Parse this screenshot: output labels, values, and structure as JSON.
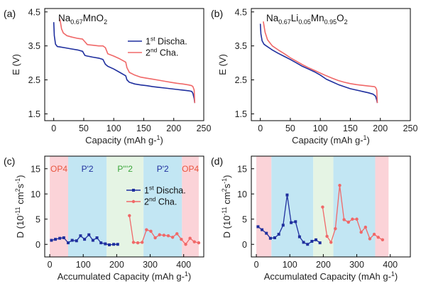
{
  "colors": {
    "discharge": "#1f2f9e",
    "charge": "#f06868",
    "op4": "#fbd3d8",
    "p2": "#c2e6f3",
    "p3": "#e5f4e4",
    "op4_text": "#e8553f",
    "p2_text": "#1f2f9e",
    "p3_text": "#3aa63a"
  },
  "chart_data": [
    {
      "id": "a",
      "type": "line",
      "panel_label": "(a)",
      "formula": {
        "base": "Na",
        "sub1": "0.67",
        "mid": "MnO",
        "sub2": "2",
        "extra": ""
      },
      "xlabel": "Capacity (mAh g⁻¹)",
      "ylabel": "E (V)",
      "xlim": [
        -15,
        250
      ],
      "ylim": [
        1.3,
        4.6
      ],
      "xticks": [
        0,
        50,
        100,
        150,
        200,
        250
      ],
      "yticks": [
        1.5,
        2.5,
        3.5,
        4.5
      ],
      "ytick_labels": [
        "1.5",
        "2.5",
        "3.5",
        "4.5"
      ],
      "legend": {
        "position": "top-right",
        "entries": [
          {
            "key": "discharge",
            "base": "1",
            "sup": "st",
            "rest": " Discha."
          },
          {
            "key": "charge",
            "base": "2",
            "sup": "nd",
            "rest": " Cha."
          }
        ]
      },
      "series": [
        {
          "key": "discharge",
          "marker": "line",
          "x": [
            0,
            1,
            3,
            6,
            10,
            20,
            30,
            40,
            48,
            52,
            56,
            65,
            75,
            82,
            86,
            90,
            100,
            110,
            120,
            122,
            126,
            135,
            145,
            155,
            165,
            175,
            185,
            195,
            205,
            215,
            225,
            230,
            232,
            234,
            235
          ],
          "y": [
            4.2,
            3.8,
            3.55,
            3.48,
            3.47,
            3.44,
            3.41,
            3.38,
            3.34,
            3.22,
            3.2,
            3.17,
            3.14,
            3.1,
            2.96,
            2.9,
            2.82,
            2.72,
            2.62,
            2.5,
            2.43,
            2.38,
            2.35,
            2.33,
            2.3,
            2.28,
            2.26,
            2.24,
            2.22,
            2.2,
            2.18,
            2.16,
            2.1,
            1.95,
            1.82
          ]
        },
        {
          "key": "charge",
          "marker": "line",
          "x": [
            235,
            234,
            232,
            230,
            225,
            215,
            205,
            195,
            185,
            175,
            165,
            155,
            145,
            135,
            126,
            122,
            120,
            110,
            100,
            90,
            86,
            82,
            75,
            65,
            56,
            52,
            48,
            40,
            30,
            22,
            16,
            13,
            11,
            10
          ],
          "y": [
            1.82,
            2.2,
            2.3,
            2.33,
            2.35,
            2.38,
            2.4,
            2.43,
            2.46,
            2.49,
            2.52,
            2.55,
            2.58,
            2.64,
            2.72,
            2.86,
            3.02,
            3.12,
            3.2,
            3.27,
            3.45,
            3.5,
            3.5,
            3.52,
            3.54,
            3.62,
            3.7,
            3.72,
            3.76,
            3.8,
            3.88,
            4.0,
            4.22,
            4.3
          ]
        }
      ]
    },
    {
      "id": "b",
      "type": "line",
      "panel_label": "(b)",
      "formula": {
        "base": "Na",
        "sub1": "0.67",
        "mid": "Li",
        "sub2": "0.05",
        "extra": "Mn",
        "sub3": "0.95",
        "tail": "O",
        "sub4": "2"
      },
      "xlabel": "Capacity (mAh g⁻¹)",
      "ylabel": "E (V)",
      "xlim": [
        -15,
        250
      ],
      "ylim": [
        1.3,
        4.6
      ],
      "xticks": [
        0,
        50,
        100,
        150,
        200,
        250
      ],
      "yticks": [
        1.5,
        2.5,
        3.5,
        4.5
      ],
      "ytick_labels": [
        "1.5",
        "2.5",
        "3.5",
        "4.5"
      ],
      "series": [
        {
          "key": "discharge",
          "marker": "line",
          "x": [
            0,
            1,
            3,
            6,
            10,
            20,
            30,
            40,
            50,
            60,
            70,
            80,
            90,
            100,
            110,
            120,
            130,
            140,
            150,
            160,
            170,
            180,
            188,
            192,
            194,
            195
          ],
          "y": [
            4.15,
            3.85,
            3.65,
            3.55,
            3.5,
            3.38,
            3.28,
            3.19,
            3.1,
            3.0,
            2.9,
            2.82,
            2.74,
            2.64,
            2.52,
            2.44,
            2.36,
            2.3,
            2.24,
            2.2,
            2.16,
            2.12,
            2.08,
            2.02,
            1.9,
            1.82
          ]
        },
        {
          "key": "charge",
          "marker": "line",
          "x": [
            195,
            194,
            192,
            190,
            180,
            170,
            160,
            150,
            140,
            130,
            120,
            110,
            100,
            90,
            80,
            70,
            60,
            50,
            40,
            30,
            20,
            12,
            8,
            6,
            5
          ],
          "y": [
            1.82,
            2.2,
            2.28,
            2.3,
            2.32,
            2.34,
            2.36,
            2.39,
            2.43,
            2.48,
            2.55,
            2.62,
            2.7,
            2.78,
            2.86,
            2.95,
            3.05,
            3.15,
            3.27,
            3.38,
            3.5,
            3.68,
            3.9,
            4.1,
            4.22
          ]
        }
      ]
    },
    {
      "id": "c",
      "type": "line",
      "panel_label": "(c)",
      "xlabel": "Accumulated Capacity (mAh g⁻¹)",
      "ylabel": "D (10⁻¹¹ cm²s⁻¹)",
      "xlim": [
        -15,
        460
      ],
      "ylim": [
        -2.5,
        17.5
      ],
      "xticks": [
        0,
        100,
        200,
        300,
        400
      ],
      "yticks": [
        0,
        5,
        10,
        15
      ],
      "ytick_labels": [
        "0",
        "5",
        "10",
        "15"
      ],
      "regions": [
        {
          "x0": 0,
          "x1": 55,
          "phase": "op4",
          "label": "OP4"
        },
        {
          "x0": 55,
          "x1": 170,
          "phase": "p2",
          "label": "P'2"
        },
        {
          "x0": 170,
          "x1": 280,
          "phase": "p3",
          "label": "P'''2"
        },
        {
          "x0": 280,
          "x1": 395,
          "phase": "p2",
          "label": "P'2"
        },
        {
          "x0": 395,
          "x1": 445,
          "phase": "op4",
          "label": "OP4"
        }
      ],
      "legend": {
        "position": "top-right",
        "entries": [
          {
            "key": "discharge",
            "base": "1",
            "sup": "st",
            "rest": " Discha."
          },
          {
            "key": "charge",
            "base": "2",
            "sup": "nd",
            "rest": " Cha."
          }
        ]
      },
      "series": [
        {
          "key": "discharge",
          "marker": "square",
          "x": [
            5,
            17,
            30,
            42,
            55,
            67,
            80,
            92,
            104,
            117,
            129,
            141,
            153,
            166,
            178,
            191,
            203
          ],
          "y": [
            0.8,
            1.0,
            1.2,
            1.3,
            0.3,
            0.8,
            0.7,
            1.7,
            1.0,
            1.9,
            0.8,
            1.3,
            0.3,
            0.1,
            -0.1,
            0.0,
            0.0
          ]
        },
        {
          "key": "charge",
          "marker": "circle",
          "x": [
            238,
            250,
            263,
            276,
            289,
            302,
            315,
            328,
            341,
            354,
            367,
            380,
            393,
            406,
            419,
            432,
            445
          ],
          "y": [
            5.7,
            0.4,
            0.3,
            0.4,
            2.9,
            2.6,
            1.3,
            1.9,
            1.8,
            1.7,
            1.4,
            2.1,
            1.0,
            0.0,
            1.2,
            0.5,
            0.3
          ]
        }
      ]
    },
    {
      "id": "d",
      "type": "line",
      "panel_label": "(d)",
      "xlabel": "Accumulated Capacity (mAh g⁻¹)",
      "ylabel": "D (10⁻¹¹ cm²s⁻¹)",
      "xlim": [
        -15,
        460
      ],
      "ylim": [
        -2.5,
        17.5
      ],
      "xticks": [
        0,
        100,
        200,
        300,
        400
      ],
      "yticks": [
        0,
        5,
        10,
        15
      ],
      "ytick_labels": [
        "0",
        "5",
        "10",
        "15"
      ],
      "regions": [
        {
          "x0": 0,
          "x1": 45,
          "phase": "op4",
          "label": ""
        },
        {
          "x0": 45,
          "x1": 170,
          "phase": "p2",
          "label": ""
        },
        {
          "x0": 170,
          "x1": 230,
          "phase": "p3",
          "label": ""
        },
        {
          "x0": 230,
          "x1": 355,
          "phase": "p2",
          "label": ""
        },
        {
          "x0": 355,
          "x1": 395,
          "phase": "op4",
          "label": ""
        }
      ],
      "series": [
        {
          "key": "discharge",
          "marker": "square",
          "x": [
            5,
            17,
            30,
            42,
            55,
            67,
            80,
            92,
            104,
            117,
            129,
            141,
            153,
            166,
            178,
            190
          ],
          "y": [
            3.5,
            2.9,
            2.2,
            1.2,
            1.3,
            2.0,
            3.8,
            9.8,
            4.3,
            4.5,
            1.5,
            0.4,
            0.0,
            0.6,
            0.9,
            0.3
          ]
        },
        {
          "key": "charge",
          "marker": "circle",
          "x": [
            198,
            211,
            223,
            236,
            249,
            262,
            275,
            287,
            300,
            313,
            326,
            339,
            352,
            364,
            377
          ],
          "y": [
            7.4,
            1.6,
            0.4,
            3.1,
            11.7,
            4.9,
            4.4,
            5.0,
            5.0,
            2.4,
            3.4,
            1.1,
            2.0,
            1.4,
            0.9
          ]
        }
      ]
    }
  ]
}
